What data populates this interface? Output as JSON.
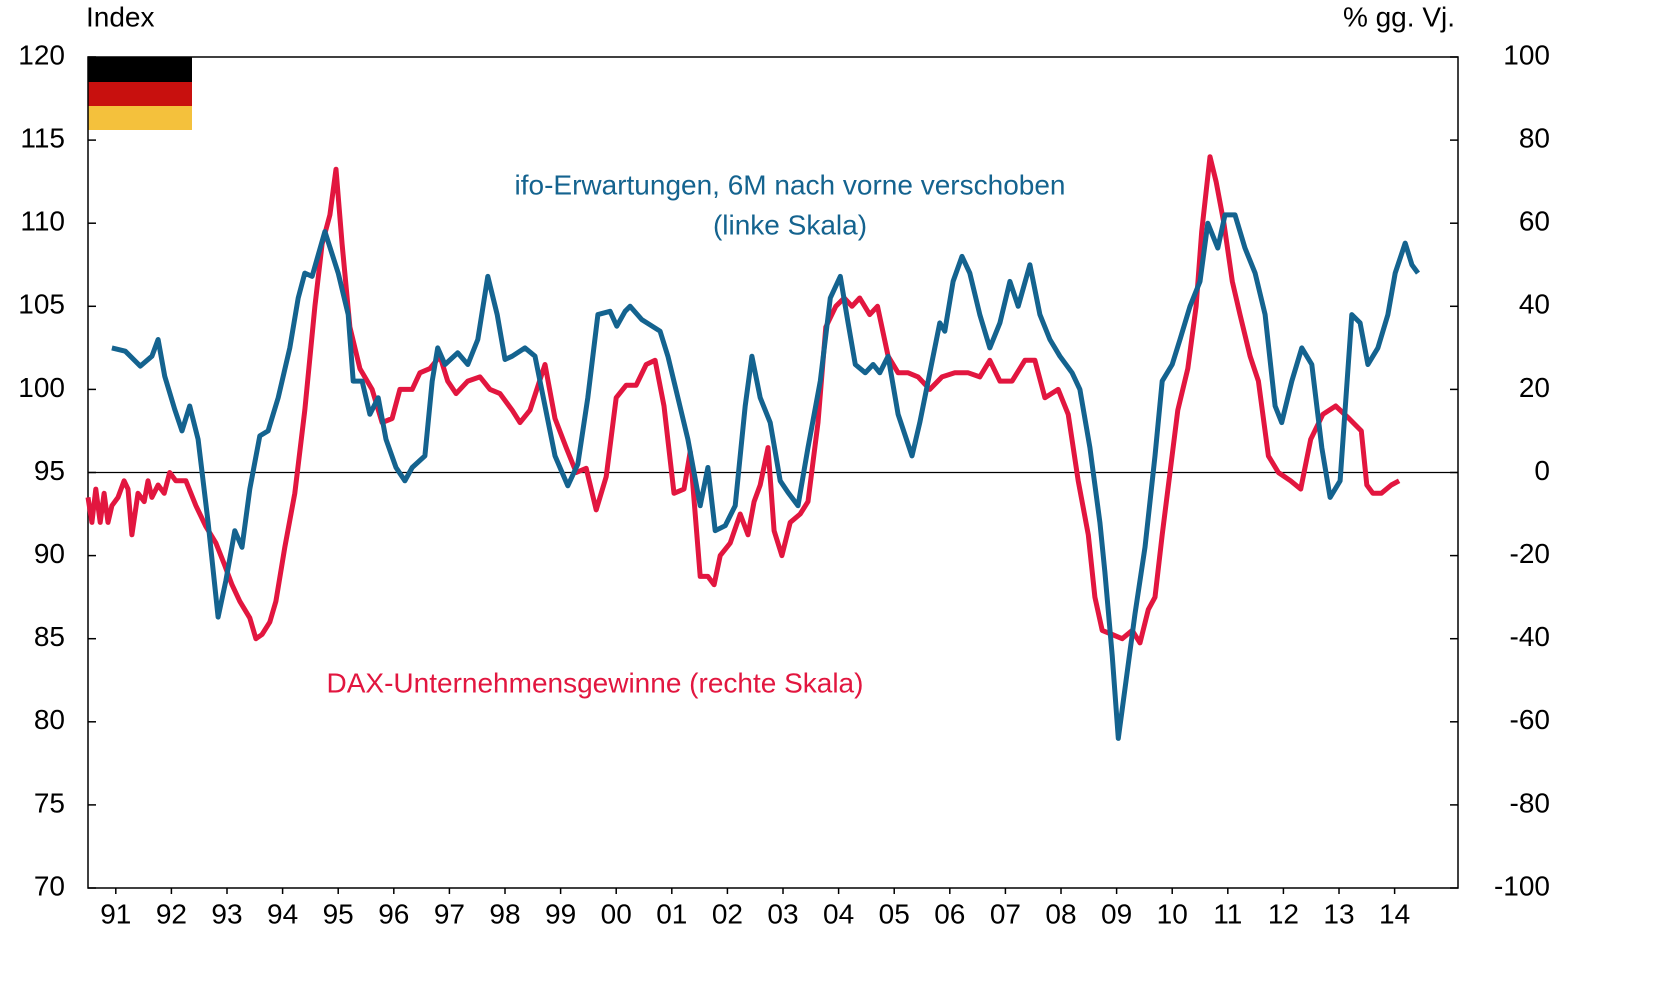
{
  "chart_data": {
    "type": "line",
    "y_axis_label": "Index",
    "y2_axis_label": "% gg. Vj.",
    "annotations": [
      "(linke Skala)"
    ],
    "xlim": [
      1991,
      2015.64
    ],
    "xticks": [
      {
        "value": 1991.5,
        "label": "91"
      },
      {
        "value": 1992.5,
        "label": "92"
      },
      {
        "value": 1993.5,
        "label": "93"
      },
      {
        "value": 1994.5,
        "label": "94"
      },
      {
        "value": 1995.5,
        "label": "95"
      },
      {
        "value": 1996.5,
        "label": "96"
      },
      {
        "value": 1997.5,
        "label": "97"
      },
      {
        "value": 1998.5,
        "label": "98"
      },
      {
        "value": 1999.5,
        "label": "99"
      },
      {
        "value": 2000.5,
        "label": "00"
      },
      {
        "value": 2001.5,
        "label": "01"
      },
      {
        "value": 2002.5,
        "label": "02"
      },
      {
        "value": 2003.5,
        "label": "03"
      },
      {
        "value": 2004.5,
        "label": "04"
      },
      {
        "value": 2005.5,
        "label": "05"
      },
      {
        "value": 2006.5,
        "label": "06"
      },
      {
        "value": 2007.5,
        "label": "07"
      },
      {
        "value": 2008.5,
        "label": "08"
      },
      {
        "value": 2009.5,
        "label": "09"
      },
      {
        "value": 2010.5,
        "label": "10"
      },
      {
        "value": 2011.5,
        "label": "11"
      },
      {
        "value": 2012.5,
        "label": "12"
      },
      {
        "value": 2013.5,
        "label": "13"
      },
      {
        "value": 2014.5,
        "label": "14"
      }
    ],
    "ylim": [
      70,
      120
    ],
    "yticks": [
      70,
      75,
      80,
      85,
      90,
      95,
      100,
      105,
      110,
      115,
      120
    ],
    "y2lim": [
      -100,
      100
    ],
    "y2ticks": [
      -100,
      -80,
      -60,
      -40,
      -20,
      0,
      20,
      40,
      60,
      80,
      100
    ],
    "hline": 95,
    "series": [
      {
        "name": "ifo-Erwartungen, 6M nach vorne verschoben",
        "color": "#14638f",
        "axis": "y",
        "x": [
          1991.43,
          1991.67,
          1991.94,
          1992.15,
          1992.26,
          1992.38,
          1992.56,
          1992.69,
          1992.83,
          1992.98,
          1993.16,
          1993.34,
          1993.48,
          1993.64,
          1993.77,
          1993.91,
          1994.09,
          1994.24,
          1994.42,
          1994.63,
          1994.78,
          1994.9,
          1995.03,
          1995.26,
          1995.5,
          1995.68,
          1995.77,
          1995.93,
          1996.07,
          1996.22,
          1996.36,
          1996.54,
          1996.7,
          1996.83,
          1997.06,
          1997.19,
          1997.29,
          1997.42,
          1997.65,
          1997.83,
          1998.01,
          1998.19,
          1998.36,
          1998.5,
          1998.63,
          1998.86,
          1999.04,
          1999.22,
          1999.4,
          1999.63,
          1999.81,
          1999.99,
          2000.17,
          2000.39,
          2000.51,
          2000.66,
          2000.75,
          2000.96,
          2001.29,
          2001.43,
          2001.61,
          2001.79,
          2002.01,
          2002.15,
          2002.28,
          2002.46,
          2002.64,
          2002.82,
          2002.94,
          2003.09,
          2003.27,
          2003.45,
          2003.59,
          2003.77,
          2003.95,
          2004.17,
          2004.35,
          2004.53,
          2004.67,
          2004.8,
          2004.98,
          2005.12,
          2005.24,
          2005.39,
          2005.57,
          2005.82,
          2005.96,
          2006.14,
          2006.32,
          2006.41,
          2006.56,
          2006.72,
          2006.86,
          2007.04,
          2007.22,
          2007.4,
          2007.58,
          2007.73,
          2007.94,
          2008.12,
          2008.3,
          2008.48,
          2008.7,
          2008.84,
          2009.02,
          2009.2,
          2009.29,
          2009.42,
          2009.53,
          2009.67,
          2009.83,
          2010.01,
          2010.19,
          2010.32,
          2010.5,
          2010.64,
          2010.82,
          2011.0,
          2011.14,
          2011.32,
          2011.45,
          2011.63,
          2011.81,
          2011.99,
          2012.17,
          2012.35,
          2012.47,
          2012.65,
          2012.83,
          2013.01,
          2013.19,
          2013.34,
          2013.52,
          2013.73,
          2013.88,
          2014.02,
          2014.2,
          2014.38,
          2014.51,
          2014.69,
          2014.81,
          2014.92
        ],
        "values": [
          102.5,
          102.3,
          101.4,
          102.0,
          103.0,
          100.8,
          98.8,
          97.5,
          99.0,
          97.0,
          92.0,
          86.3,
          88.5,
          91.5,
          90.5,
          94.0,
          97.2,
          97.5,
          99.5,
          102.5,
          105.5,
          107.0,
          106.8,
          109.5,
          107.0,
          104.5,
          100.5,
          100.5,
          98.5,
          99.5,
          97.0,
          95.3,
          94.5,
          95.3,
          96.0,
          100.5,
          102.5,
          101.5,
          102.2,
          101.5,
          103.0,
          106.8,
          104.5,
          101.8,
          102.0,
          102.5,
          102.0,
          99.0,
          96.0,
          94.2,
          95.5,
          99.5,
          104.5,
          104.7,
          103.8,
          104.7,
          105.0,
          104.2,
          103.5,
          102.0,
          99.5,
          97.0,
          93.0,
          95.3,
          91.5,
          91.8,
          93.0,
          99.0,
          102.0,
          99.5,
          98.0,
          94.5,
          93.8,
          93.0,
          96.5,
          100.5,
          105.5,
          106.8,
          104.0,
          101.5,
          101.0,
          101.5,
          101.0,
          102.0,
          98.5,
          96.0,
          98.0,
          101.0,
          104.0,
          103.5,
          106.5,
          108.0,
          107.0,
          104.5,
          102.5,
          104.0,
          106.5,
          105.0,
          107.5,
          104.5,
          103.0,
          102.0,
          101.0,
          100.0,
          96.5,
          92.0,
          89.0,
          84.0,
          79.0,
          82.5,
          86.5,
          90.5,
          96.0,
          100.5,
          101.5,
          103.0,
          105.0,
          106.5,
          110.0,
          108.5,
          110.5,
          110.5,
          108.5,
          107.0,
          104.5,
          99.0,
          98.0,
          100.5,
          102.5,
          101.5,
          96.5,
          93.5,
          94.5,
          104.5,
          104.0,
          101.5,
          102.5,
          104.5,
          107.0,
          108.8,
          107.5,
          107.0
        ]
      },
      {
        "name": "DAX-Unternehmensgewinne (rechte Skala)",
        "color": "#e2163f",
        "axis": "y2",
        "x": [
          1991.0,
          1991.07,
          1991.14,
          1991.22,
          1991.29,
          1991.36,
          1991.43,
          1991.54,
          1991.65,
          1991.72,
          1991.79,
          1991.9,
          1992.01,
          1992.08,
          1992.15,
          1992.26,
          1992.37,
          1992.47,
          1992.58,
          1992.76,
          1992.94,
          1993.12,
          1993.3,
          1993.45,
          1993.59,
          1993.73,
          1993.91,
          1994.02,
          1994.13,
          1994.27,
          1994.38,
          1994.54,
          1994.72,
          1994.9,
          1995.08,
          1995.21,
          1995.35,
          1995.46,
          1995.57,
          1995.71,
          1995.89,
          1996.11,
          1996.29,
          1996.47,
          1996.61,
          1996.83,
          1996.97,
          1997.15,
          1997.33,
          1997.47,
          1997.62,
          1997.83,
          1998.05,
          1998.23,
          1998.41,
          1998.63,
          1998.77,
          1998.95,
          1999.22,
          1999.4,
          1999.6,
          1999.78,
          1999.96,
          2000.14,
          2000.32,
          2000.5,
          2000.68,
          2000.86,
          2001.04,
          2001.2,
          2001.36,
          2001.54,
          2001.72,
          2001.83,
          2002.01,
          2002.15,
          2002.26,
          2002.37,
          2002.55,
          2002.73,
          2002.87,
          2002.98,
          2003.09,
          2003.23,
          2003.34,
          2003.48,
          2003.63,
          2003.81,
          2003.95,
          2004.13,
          2004.27,
          2004.45,
          2004.6,
          2004.74,
          2004.88,
          2005.06,
          2005.2,
          2005.39,
          2005.57,
          2005.75,
          2005.93,
          2006.14,
          2006.36,
          2006.59,
          2006.83,
          2007.04,
          2007.22,
          2007.4,
          2007.62,
          2007.85,
          2008.03,
          2008.21,
          2008.45,
          2008.63,
          2008.81,
          2008.99,
          2009.11,
          2009.24,
          2009.42,
          2009.6,
          2009.78,
          2009.92,
          2010.07,
          2010.19,
          2010.32,
          2010.46,
          2010.6,
          2010.78,
          2010.93,
          2011.03,
          2011.18,
          2011.29,
          2011.43,
          2011.58,
          2011.72,
          2011.9,
          2012.05,
          2012.23,
          2012.41,
          2012.63,
          2012.81,
          2012.99,
          2013.21,
          2013.44,
          2013.68,
          2013.9,
          2014.0,
          2014.11,
          2014.26,
          2014.44,
          2014.58
        ],
        "values": [
          -6,
          -12,
          -4,
          -12,
          -5,
          -12,
          -8,
          -6,
          -2,
          -4,
          -15,
          -5,
          -7,
          -2,
          -6,
          -3,
          -5,
          0,
          -2,
          -2,
          -8,
          -13,
          -17,
          -22,
          -27,
          -31,
          -35,
          -40,
          -39,
          -36,
          -31,
          -18,
          -5,
          15,
          40,
          55,
          62,
          73,
          55,
          35,
          25,
          20,
          12,
          13,
          20,
          20,
          24,
          25,
          28,
          22,
          19,
          22,
          23,
          20,
          19,
          15,
          12,
          15,
          26,
          13,
          6,
          0,
          1,
          -9,
          -1,
          18,
          21,
          21,
          26,
          27,
          16,
          -5,
          -4,
          5,
          -25,
          -25,
          -27,
          -20,
          -17,
          -10,
          -15,
          -7,
          -3,
          6,
          -14,
          -20,
          -12,
          -10,
          -7,
          12,
          35,
          40,
          42,
          40,
          42,
          38,
          40,
          28,
          24,
          24,
          23,
          20,
          23,
          24,
          24,
          23,
          27,
          22,
          22,
          27,
          27,
          18,
          20,
          14,
          -2,
          -15,
          -30,
          -38,
          -39,
          -40,
          -38,
          -41,
          -33,
          -30,
          -15,
          0,
          15,
          25,
          40,
          58,
          76,
          70,
          60,
          46,
          38,
          28,
          22,
          4,
          0,
          -2,
          -4,
          8,
          14,
          16,
          13,
          10,
          -3,
          -5,
          -5,
          -3,
          -2
        ]
      }
    ]
  }
}
